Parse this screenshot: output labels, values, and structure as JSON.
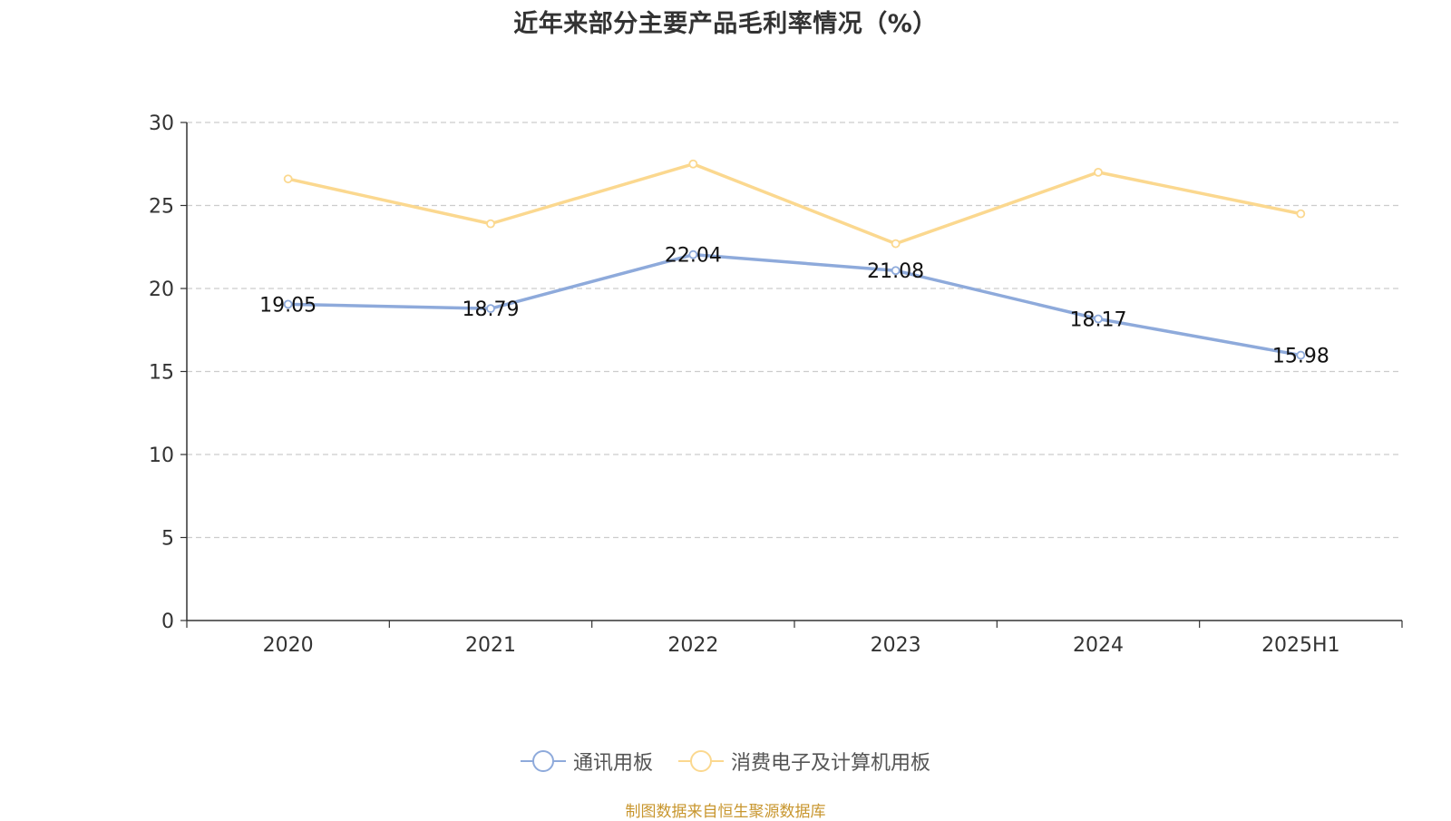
{
  "chart_data": {
    "type": "line",
    "title": "近年来部分主要产品毛利率情况（%）",
    "categories": [
      "2020",
      "2021",
      "2022",
      "2023",
      "2024",
      "2025H1"
    ],
    "series": [
      {
        "name": "通讯用板",
        "color": "#8eaadb",
        "values": [
          19.05,
          18.79,
          22.04,
          21.08,
          18.17,
          15.98
        ],
        "data_labels": [
          "19.05",
          "18.79",
          "22.04",
          "21.08",
          "18.17",
          "15.98"
        ]
      },
      {
        "name": "消费电子及计算机用板",
        "color": "#fbd88f",
        "values": [
          26.6,
          23.9,
          27.5,
          22.7,
          27.0,
          24.5
        ],
        "data_labels": null
      }
    ],
    "ylim": [
      0,
      30
    ],
    "yticks": [
      0,
      5,
      10,
      15,
      20,
      25,
      30
    ],
    "grid": true,
    "legend_position": "bottom"
  },
  "source_note": "制图数据来自恒生聚源数据库",
  "source_color": "#c8962e"
}
